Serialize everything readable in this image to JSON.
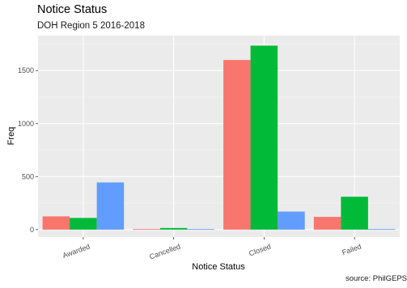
{
  "chart_data": {
    "type": "bar",
    "title": "Notice Status",
    "subtitle": "DOH Region 5 2016-2018",
    "xlabel": "Notice Status",
    "ylabel": "Freq",
    "caption": "source: PhilGEPS",
    "categories": [
      "Awarded",
      "Cancelled",
      "Closed",
      "Failed"
    ],
    "yticks": [
      0,
      500,
      1000,
      1500
    ],
    "ylim": [
      -70,
      1830
    ],
    "grid": true,
    "legend": "none",
    "series": [
      {
        "color": "#F8766D",
        "values": [
          125,
          5,
          1600,
          120
        ]
      },
      {
        "color": "#00BA38",
        "values": [
          110,
          15,
          1735,
          310
        ]
      },
      {
        "color": "#619CFF",
        "values": [
          445,
          5,
          170,
          5
        ]
      }
    ]
  }
}
